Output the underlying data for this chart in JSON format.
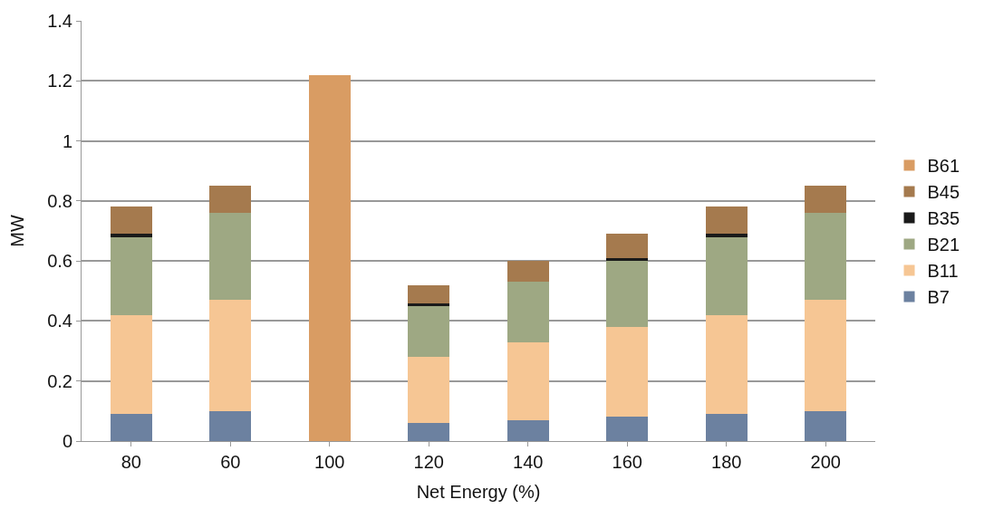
{
  "chart_data": {
    "type": "bar",
    "stacked": true,
    "xlabel": "Net Energy (%)",
    "ylabel": "MW",
    "categories": [
      "80",
      "60",
      "100",
      "120",
      "140",
      "160",
      "180",
      "200"
    ],
    "series": [
      {
        "name": "B7",
        "color": "#6c81a0",
        "values": [
          0.09,
          0.1,
          null,
          0.06,
          0.07,
          0.08,
          0.09,
          0.1
        ]
      },
      {
        "name": "B11",
        "color": "#f6c694",
        "values": [
          0.33,
          0.37,
          null,
          0.22,
          0.26,
          0.3,
          0.33,
          0.37
        ]
      },
      {
        "name": "B21",
        "color": "#9ea883",
        "values": [
          0.26,
          0.29,
          null,
          0.17,
          0.2,
          0.22,
          0.26,
          0.29
        ]
      },
      {
        "name": "B35",
        "color": "#1a1a1a",
        "values": [
          0.01,
          null,
          null,
          0.01,
          null,
          0.01,
          0.01,
          null
        ]
      },
      {
        "name": "B45",
        "color": "#a57a4e",
        "values": [
          0.09,
          0.09,
          null,
          0.06,
          0.07,
          0.08,
          0.09,
          0.09
        ]
      },
      {
        "name": "B61",
        "color": "#d99c63",
        "values": [
          null,
          null,
          1.22,
          null,
          null,
          null,
          null,
          null
        ]
      }
    ],
    "ylim": [
      0,
      1.4
    ],
    "yticks": [
      0,
      0.2,
      0.4,
      0.6,
      0.8,
      1,
      1.2,
      1.4
    ],
    "grid": "y",
    "legend": "right"
  }
}
